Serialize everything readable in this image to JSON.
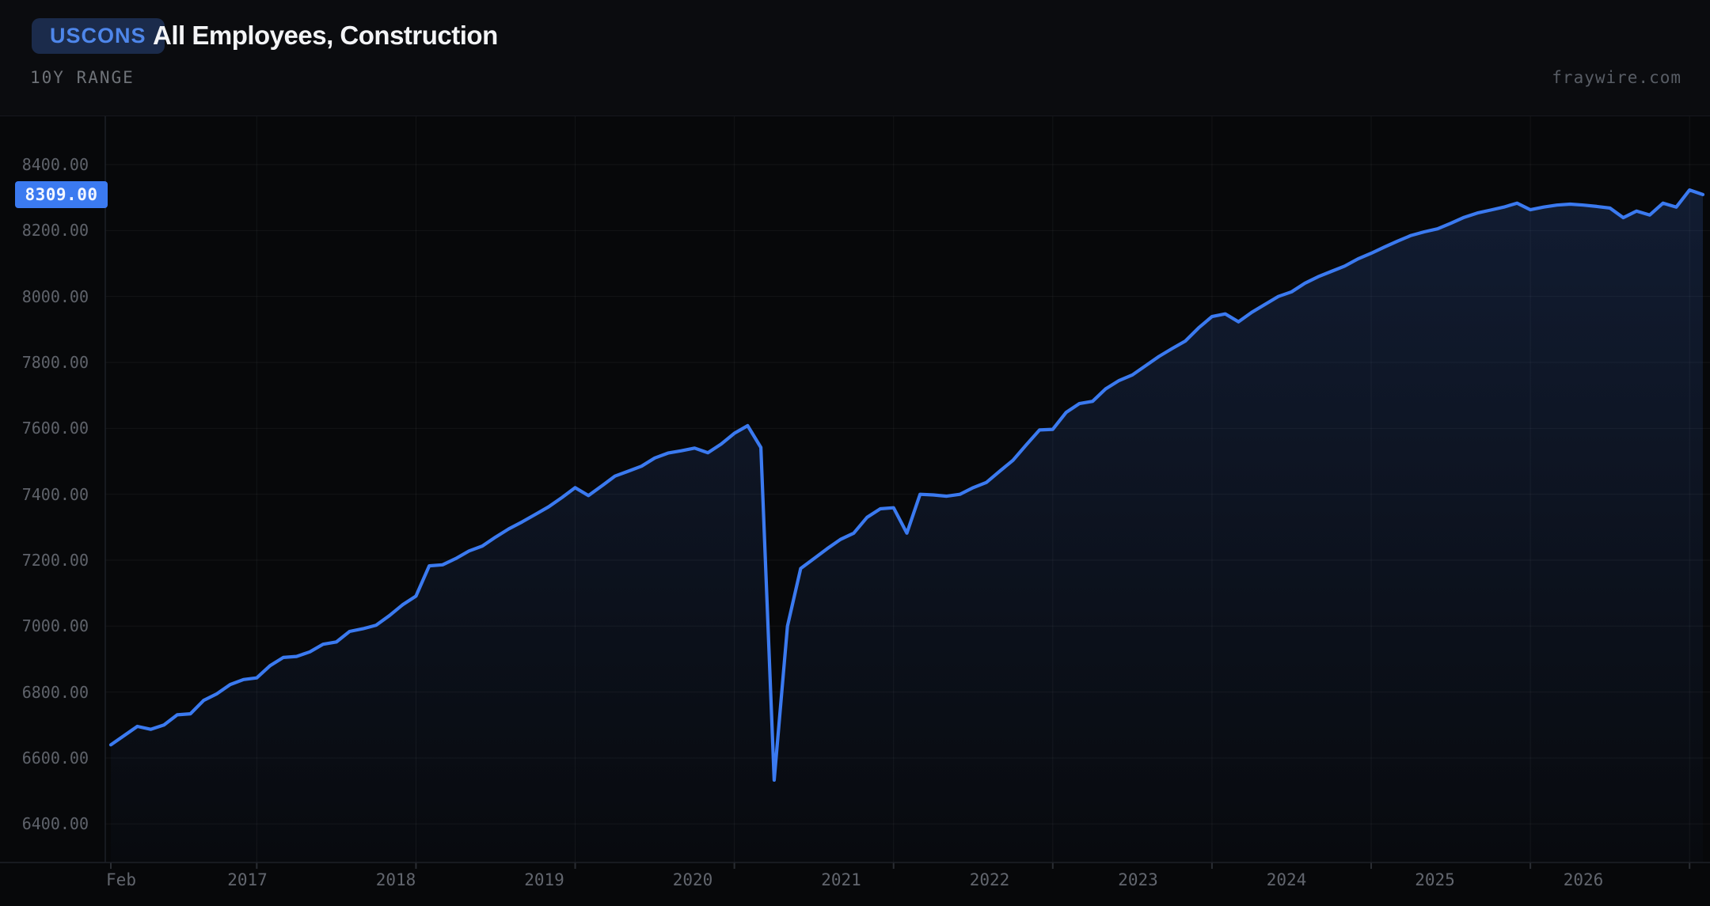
{
  "header": {
    "ticker": "USCONS",
    "title": "All Employees, Construction",
    "range_label": "10Y RANGE",
    "watermark": "fraywire.com"
  },
  "y_axis": {
    "tick_labels": [
      "8400.00",
      "8200.00",
      "8000.00",
      "7800.00",
      "7600.00",
      "7400.00",
      "7200.00",
      "7000.00",
      "6800.00",
      "6600.00",
      "6400.00"
    ],
    "current_value_label": "8309.00"
  },
  "x_axis": {
    "labels": [
      "Feb",
      "2017",
      "2018",
      "2019",
      "2020",
      "2021",
      "2022",
      "2023",
      "2024",
      "2025",
      "2026"
    ]
  },
  "colors": {
    "background": "#08090b",
    "header_background": "#0b0c0f",
    "line": "#3b7af0",
    "area_top": "rgba(64,118,228,0.20)",
    "area_bottom": "rgba(64,118,228,0.02)",
    "grid": "rgba(255,255,255,0.05)",
    "axis_line": "#1d2027",
    "price_badge_bg": "#3b7af0",
    "price_badge_text": "#f2f6ff",
    "ticker_badge_bg": "#1b2b4b",
    "ticker_text": "#4e86ea"
  },
  "chart_data": {
    "type": "line",
    "title": "All Employees, Construction",
    "series_name": "USCONS",
    "frequency": "monthly",
    "legend_position": "none",
    "grid": true,
    "y_ticks": [
      6400,
      6600,
      6800,
      7000,
      7200,
      7400,
      7600,
      7800,
      8000,
      8200,
      8400
    ],
    "ylim": [
      6280,
      8550
    ],
    "last_value": 8309,
    "months": [
      "2016-02",
      "2016-03",
      "2016-04",
      "2016-05",
      "2016-06",
      "2016-07",
      "2016-08",
      "2016-09",
      "2016-10",
      "2016-11",
      "2016-12",
      "2017-01",
      "2017-02",
      "2017-03",
      "2017-04",
      "2017-05",
      "2017-06",
      "2017-07",
      "2017-08",
      "2017-09",
      "2017-10",
      "2017-11",
      "2017-12",
      "2018-01",
      "2018-02",
      "2018-03",
      "2018-04",
      "2018-05",
      "2018-06",
      "2018-07",
      "2018-08",
      "2018-09",
      "2018-10",
      "2018-11",
      "2018-12",
      "2019-01",
      "2019-02",
      "2019-03",
      "2019-04",
      "2019-05",
      "2019-06",
      "2019-07",
      "2019-08",
      "2019-09",
      "2019-10",
      "2019-11",
      "2019-12",
      "2020-01",
      "2020-02",
      "2020-03",
      "2020-04",
      "2020-05",
      "2020-06",
      "2020-07",
      "2020-08",
      "2020-09",
      "2020-10",
      "2020-11",
      "2020-12",
      "2021-01",
      "2021-02",
      "2021-03",
      "2021-04",
      "2021-05",
      "2021-06",
      "2021-07",
      "2021-08",
      "2021-09",
      "2021-10",
      "2021-11",
      "2021-12",
      "2022-01",
      "2022-02",
      "2022-03",
      "2022-04",
      "2022-05",
      "2022-06",
      "2022-07",
      "2022-08",
      "2022-09",
      "2022-10",
      "2022-11",
      "2022-12",
      "2023-01",
      "2023-02",
      "2023-03",
      "2023-04",
      "2023-05",
      "2023-06",
      "2023-07",
      "2023-08",
      "2023-09",
      "2023-10",
      "2023-11",
      "2023-12",
      "2024-01",
      "2024-02",
      "2024-03",
      "2024-04",
      "2024-05",
      "2024-06",
      "2024-07",
      "2024-08",
      "2024-09",
      "2024-10",
      "2024-11",
      "2024-12",
      "2025-01",
      "2025-02",
      "2025-03",
      "2025-04",
      "2025-05",
      "2025-06",
      "2025-07",
      "2025-08",
      "2025-09",
      "2025-10",
      "2025-11",
      "2025-12",
      "2026-01",
      "2026-02"
    ],
    "values": [
      6640,
      6668,
      6696,
      6687,
      6700,
      6731,
      6734,
      6775,
      6795,
      6823,
      6838,
      6843,
      6880,
      6905,
      6908,
      6922,
      6945,
      6952,
      6984,
      6992,
      7003,
      7032,
      7065,
      7091,
      7183,
      7186,
      7205,
      7228,
      7243,
      7270,
      7295,
      7316,
      7339,
      7362,
      7390,
      7420,
      7396,
      7425,
      7455,
      7470,
      7485,
      7510,
      7525,
      7532,
      7540,
      7526,
      7552,
      7585,
      7608,
      7542,
      6533,
      7000,
      7175,
      7205,
      7235,
      7263,
      7282,
      7330,
      7356,
      7359,
      7282,
      7400,
      7398,
      7394,
      7400,
      7420,
      7436,
      7470,
      7503,
      7550,
      7595,
      7597,
      7648,
      7675,
      7682,
      7720,
      7745,
      7762,
      7790,
      7818,
      7842,
      7865,
      7905,
      7939,
      7947,
      7923,
      7952,
      7976,
      8000,
      8014,
      8040,
      8060,
      8076,
      8092,
      8114,
      8131,
      8150,
      8168,
      8185,
      8196,
      8205,
      8222,
      8240,
      8253,
      8262,
      8271,
      8283,
      8263,
      8271,
      8277,
      8280,
      8277,
      8273,
      8268,
      8239,
      8259,
      8247,
      8283,
      8271,
      8323,
      8309
    ]
  }
}
